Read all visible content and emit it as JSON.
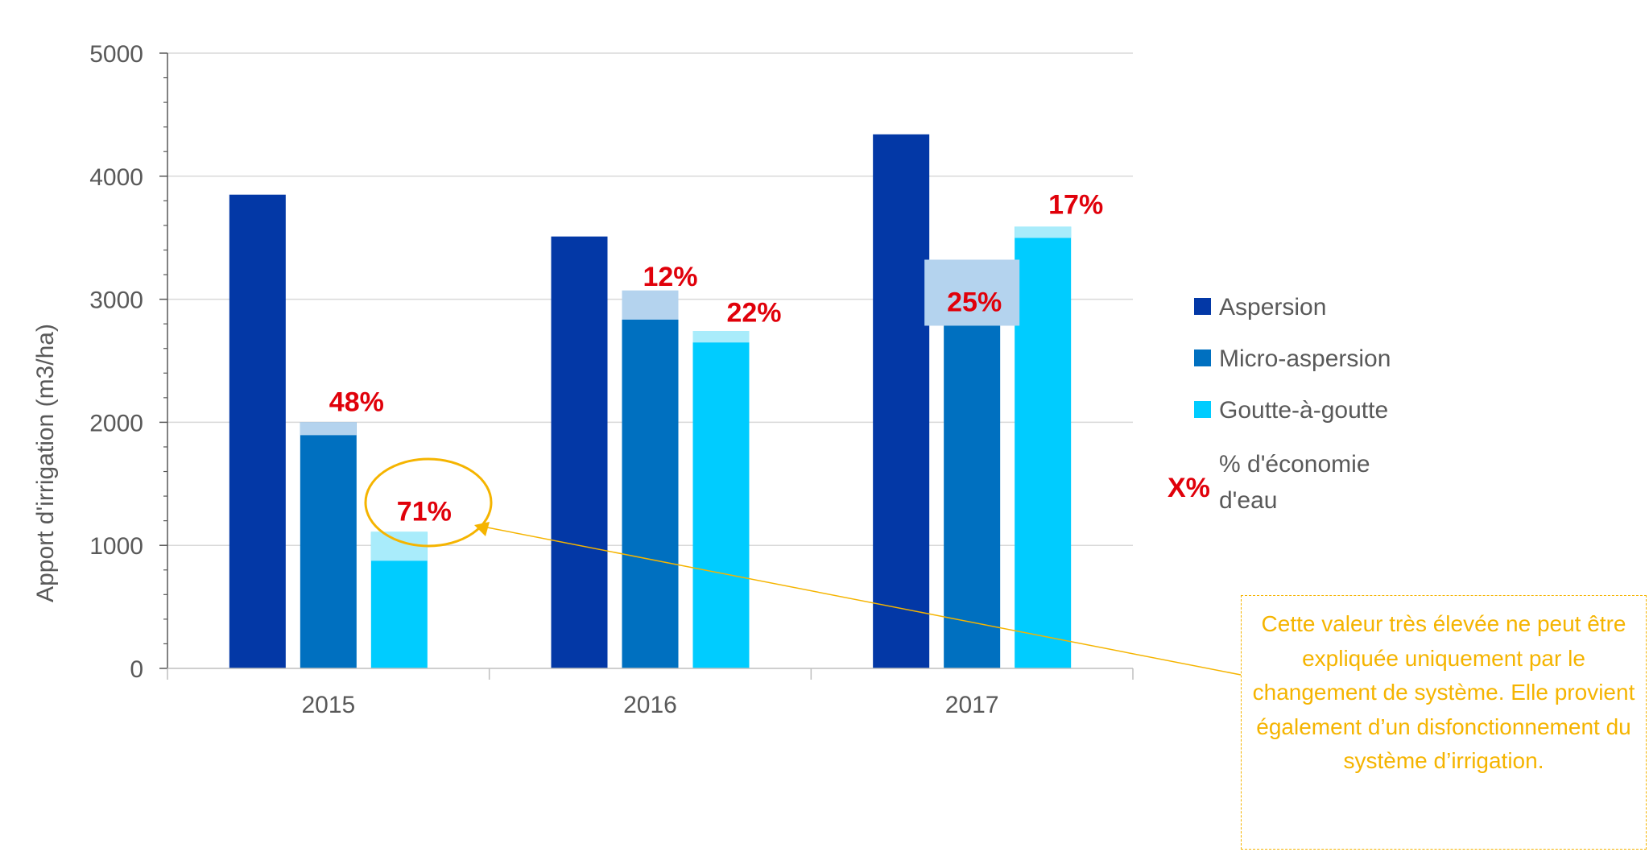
{
  "chart_data": {
    "type": "bar",
    "categories": [
      "2015",
      "2016",
      "2017"
    ],
    "series": [
      {
        "name": "Aspersion",
        "color": "#0338a6",
        "values": [
          3850,
          3510,
          4340
        ]
      },
      {
        "name": "Micro-aspersion",
        "color": "#0070c0",
        "values": [
          2000,
          3070,
          3230
        ]
      },
      {
        "name": "Goutte-à-goutte",
        "color": "#00ccff",
        "values": [
          1110,
          2740,
          3590
        ]
      }
    ],
    "savings": [
      {
        "series": "Micro-aspersion",
        "category": "2015",
        "label": "48%"
      },
      {
        "series": "Goutte-à-goutte",
        "category": "2015",
        "label": "71%"
      },
      {
        "series": "Micro-aspersion",
        "category": "2016",
        "label": "12%"
      },
      {
        "series": "Goutte-à-goutte",
        "category": "2016",
        "label": "22%"
      },
      {
        "series": "Micro-aspersion",
        "category": "2017",
        "label": "25%"
      },
      {
        "series": "Goutte-à-goutte",
        "category": "2017",
        "label": "17%"
      }
    ],
    "ylabel": "Apport  d'irrigation (m3/ha)",
    "xlabel": "",
    "ylim": [
      0,
      5000
    ],
    "yticks": [
      0,
      1000,
      2000,
      3000,
      4000,
      5000
    ],
    "grid": true,
    "legend_position": "right",
    "savings_legend": {
      "symbol": "X%",
      "text": "% d'économie d'eau"
    },
    "label_color": "#e0000a"
  },
  "annotation": {
    "text": "Cette valeur très élevée ne peut être expliquée uniquement par le changement de système. Elle provient également d’un disfonctionnement du système d’irrigation.",
    "color": "#f5b400",
    "highlights": "71%"
  }
}
